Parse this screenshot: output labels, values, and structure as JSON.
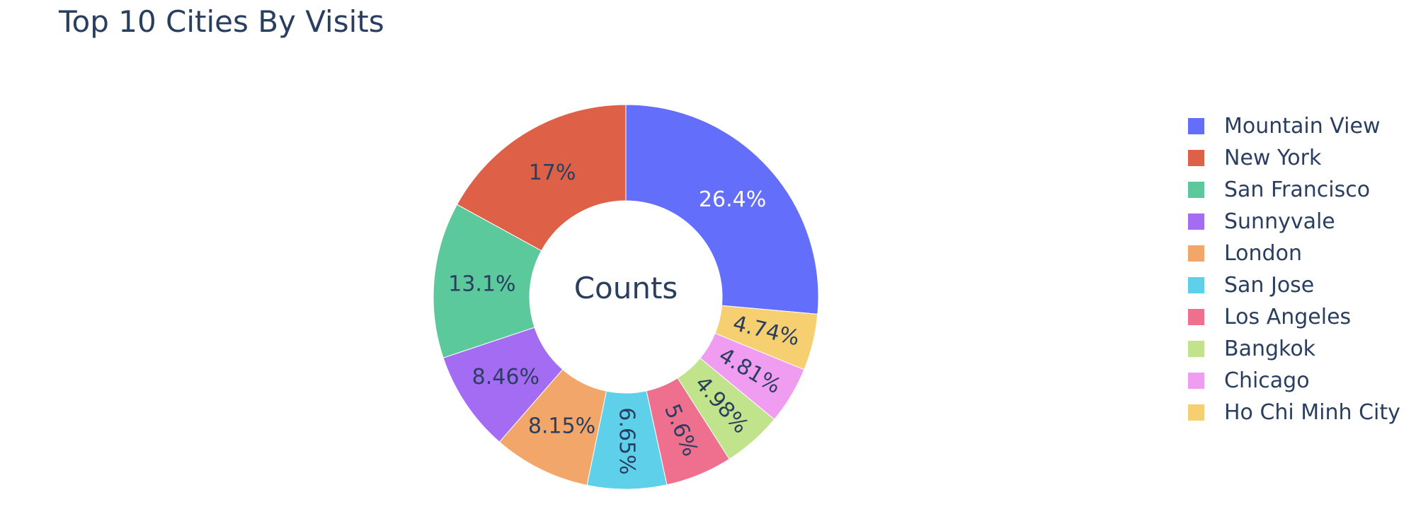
{
  "chart_data": {
    "type": "pie",
    "title": "Top 10 Cities By Visits",
    "center_label": "Counts",
    "hole": true,
    "direction": "clockwise",
    "legend_position": "right",
    "slices": [
      {
        "label": "Mountain View",
        "value": 26.4,
        "text": "26.4%",
        "color": "#636efa",
        "text_color": "#ffffff"
      },
      {
        "label": "Ho Chi Minh City",
        "value": 4.74,
        "text": "4.74%",
        "color": "#f6cf71",
        "text_color": "#2a3f5f"
      },
      {
        "label": "Chicago",
        "value": 4.81,
        "text": "4.81%",
        "color": "#ef9cf1",
        "text_color": "#2a3f5f"
      },
      {
        "label": "Bangkok",
        "value": 4.98,
        "text": "4.98%",
        "color": "#c1e38b",
        "text_color": "#2a3f5f"
      },
      {
        "label": "Los Angeles",
        "value": 5.6,
        "text": "5.6%",
        "color": "#ef6f8e",
        "text_color": "#2a3f5f"
      },
      {
        "label": "San Jose",
        "value": 6.65,
        "text": "6.65%",
        "color": "#5fd0ea",
        "text_color": "#2a3f5f"
      },
      {
        "label": "London",
        "value": 8.15,
        "text": "8.15%",
        "color": "#f2a66a",
        "text_color": "#2a3f5f"
      },
      {
        "label": "Sunnyvale",
        "value": 8.46,
        "text": "8.46%",
        "color": "#a36cf2",
        "text_color": "#2a3f5f"
      },
      {
        "label": "San Francisco",
        "value": 13.1,
        "text": "13.1%",
        "color": "#5bc99b",
        "text_color": "#2a3f5f"
      },
      {
        "label": "New York",
        "value": 17,
        "text": "17%",
        "color": "#de6047",
        "text_color": "#2a3f5f"
      }
    ],
    "legend": [
      {
        "label": "Mountain View",
        "color": "#636efa"
      },
      {
        "label": "New York",
        "color": "#de6047"
      },
      {
        "label": "San Francisco",
        "color": "#5bc99b"
      },
      {
        "label": "Sunnyvale",
        "color": "#a36cf2"
      },
      {
        "label": "London",
        "color": "#f2a66a"
      },
      {
        "label": "San Jose",
        "color": "#5fd0ea"
      },
      {
        "label": "Los Angeles",
        "color": "#ef6f8e"
      },
      {
        "label": "Bangkok",
        "color": "#c1e38b"
      },
      {
        "label": "Chicago",
        "color": "#ef9cf1"
      },
      {
        "label": "Ho Chi Minh City",
        "color": "#f6cf71"
      }
    ]
  }
}
